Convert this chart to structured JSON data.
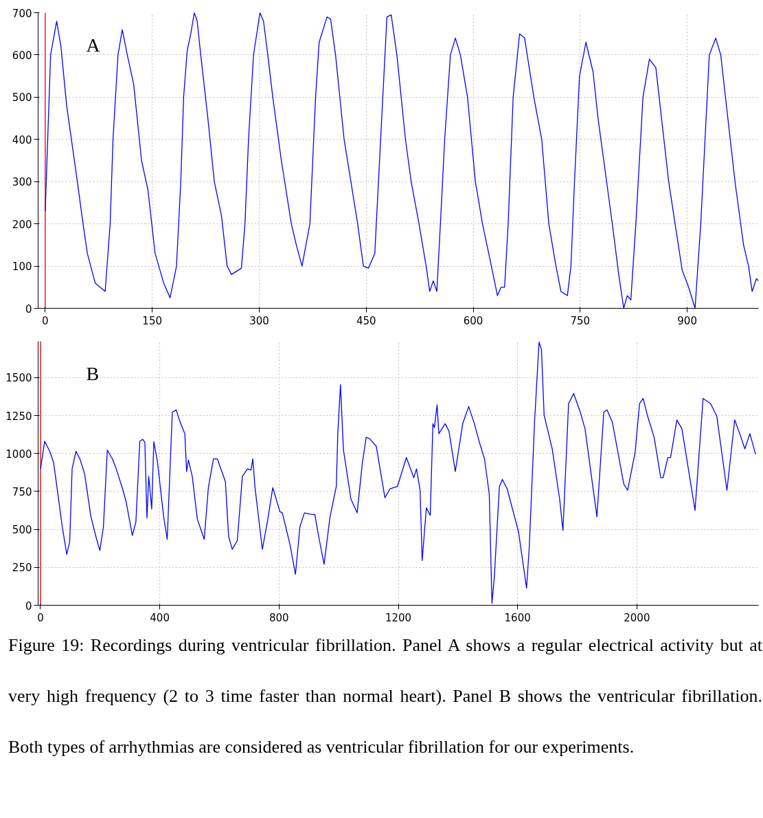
{
  "chart_data": [
    {
      "type": "line",
      "annotations": [
        "A"
      ],
      "xlim": [
        -10,
        1000
      ],
      "ylim": [
        0,
        700
      ],
      "xticks": [
        0,
        150,
        300,
        450,
        600,
        750,
        900
      ],
      "yticks": [
        0,
        100,
        200,
        300,
        400,
        500,
        600,
        700
      ],
      "grid": true,
      "ref_lines": [
        {
          "axis": "x",
          "value": 0,
          "color": "#f05050"
        }
      ],
      "series": [
        {
          "color": "#0000ff",
          "x": [
            0,
            7.5,
            16,
            22,
            30,
            45,
            53,
            59,
            70,
            84,
            91,
            95,
            102,
            108,
            115,
            124,
            135,
            144,
            154,
            166,
            175,
            184,
            190,
            194,
            199,
            204,
            209,
            213,
            218,
            228,
            237,
            247,
            255,
            261,
            275,
            280,
            285,
            292,
            301,
            306,
            312,
            319,
            331,
            345,
            352,
            360,
            371,
            379,
            384,
            395,
            400,
            407,
            419,
            438,
            446,
            453,
            462,
            479,
            485,
            493,
            505,
            513,
            524,
            534,
            539,
            544,
            549,
            554,
            560,
            568,
            575,
            582,
            592,
            603,
            613,
            623,
            634,
            639,
            644,
            649,
            656,
            665,
            672,
            685,
            696,
            706,
            716,
            723,
            732,
            737,
            742,
            749,
            758,
            768,
            775,
            787,
            795,
            804,
            811,
            816,
            821,
            828,
            838,
            847,
            856,
            864,
            874,
            883,
            893,
            902,
            911,
            919,
            931,
            940,
            947,
            957,
            967,
            979,
            986,
            991,
            997,
            1000
          ],
          "values": [
            230,
            600,
            680,
            620,
            480,
            300,
            200,
            130,
            60,
            40,
            200,
            400,
            600,
            660,
            600,
            530,
            350,
            280,
            130,
            60,
            25,
            100,
            300,
            500,
            610,
            650,
            700,
            680,
            600,
            450,
            300,
            220,
            100,
            80,
            95,
            200,
            400,
            600,
            700,
            680,
            600,
            500,
            350,
            200,
            150,
            100,
            200,
            500,
            630,
            690,
            685,
            600,
            400,
            200,
            100,
            95,
            130,
            690,
            695,
            600,
            400,
            300,
            200,
            100,
            40,
            65,
            40,
            200,
            400,
            600,
            640,
            600,
            500,
            300,
            200,
            120,
            30,
            50,
            50,
            200,
            500,
            650,
            640,
            500,
            400,
            200,
            100,
            40,
            30,
            100,
            300,
            550,
            630,
            560,
            450,
            300,
            200,
            80,
            0,
            30,
            20,
            200,
            500,
            590,
            570,
            450,
            300,
            200,
            90,
            50,
            0,
            200,
            600,
            640,
            600,
            450,
            300,
            150,
            100,
            40,
            70,
            65
          ]
        }
      ]
    },
    {
      "type": "line",
      "annotations": [
        "B",
        "Figure 19: Recordings during ventricular fibrillation. Panel A shows a regular electrical activity but at very high frequency (2 to 3 time faster than normal heart). Panel B shows the ventricular fibrillation. Both types of arrhythmias are considered as ventricular fibrillation for our experiments."
      ],
      "xlim": [
        -8,
        2408
      ],
      "ylim": [
        0,
        1740
      ],
      "xticks": [
        0,
        400,
        800,
        1200,
        1600,
        2000
      ],
      "yticks": [
        0,
        250,
        500,
        750,
        1000,
        1250,
        1500
      ],
      "grid": true,
      "ref_lines": [
        {
          "axis": "x",
          "value": 0,
          "color": "#f05050"
        }
      ],
      "series": [
        {
          "color": "#0000ff",
          "x": [
            0,
            14,
            31,
            44,
            56,
            73,
            88,
            98,
            106,
            119,
            132,
            148,
            169,
            186,
            199,
            211,
            224,
            241,
            254,
            274,
            287,
            308,
            320,
            333,
            343,
            350,
            357,
            363,
            373,
            380,
            392,
            413,
            425,
            442,
            455,
            467,
            484,
            490,
            496,
            509,
            526,
            549,
            563,
            580,
            593,
            620,
            631,
            643,
            660,
            677,
            694,
            706,
            712,
            719,
            744,
            761,
            779,
            803,
            811,
            836,
            855,
            870,
            885,
            903,
            920,
            933,
            951,
            971,
            992,
            997,
            1006,
            1016,
            1041,
            1062,
            1079,
            1092,
            1104,
            1126,
            1155,
            1172,
            1197,
            1227,
            1252,
            1261,
            1273,
            1280,
            1294,
            1307,
            1316,
            1321,
            1330,
            1336,
            1357,
            1370,
            1391,
            1416,
            1436,
            1455,
            1472,
            1489,
            1505,
            1514,
            1522,
            1539,
            1549,
            1565,
            1603,
            1630,
            1639,
            1657,
            1672,
            1680,
            1689,
            1716,
            1741,
            1752,
            1771,
            1788,
            1809,
            1826,
            1866,
            1889,
            1900,
            1918,
            1956,
            1969,
            1994,
            2009,
            2021,
            2036,
            2058,
            2080,
            2088,
            2104,
            2113,
            2134,
            2151,
            2195,
            2222,
            2247,
            2268,
            2302,
            2328,
            2345,
            2362,
            2379,
            2398
          ],
          "values": [
            899,
            1081,
            1015,
            940,
            766,
            518,
            336,
            419,
            899,
            1015,
            965,
            866,
            584,
            452,
            361,
            518,
            1023,
            965,
            899,
            775,
            684,
            460,
            551,
            1081,
            1094,
            1073,
            576,
            849,
            634,
            1078,
            949,
            584,
            435,
            1272,
            1288,
            1214,
            1131,
            882,
            957,
            849,
            568,
            435,
            775,
            965,
            965,
            816,
            452,
            369,
            427,
            849,
            899,
            891,
            965,
            783,
            369,
            551,
            775,
            617,
            609,
            406,
            204,
            518,
            609,
            601,
            598,
            452,
            270,
            584,
            783,
            1131,
            1454,
            1023,
            700,
            609,
            932,
            1106,
            1098,
            1048,
            709,
            767,
            783,
            974,
            841,
            899,
            758,
            295,
            642,
            593,
            1197,
            1171,
            1321,
            1131,
            1197,
            1147,
            882,
            1197,
            1310,
            1197,
            1073,
            965,
            733,
            13,
            187,
            783,
            829,
            767,
            485,
            113,
            377,
            1214,
            1735,
            1685,
            1252,
            1031,
            700,
            493,
            1329,
            1396,
            1280,
            1164,
            584,
            1272,
            1288,
            1205,
            800,
            758,
            1007,
            1329,
            1363,
            1247,
            1106,
            841,
            841,
            974,
            974,
            1222,
            1164,
            626,
            1363,
            1330,
            1247,
            758,
            1222,
            1131,
            1031,
            1131,
            995
          ]
        }
      ]
    }
  ]
}
